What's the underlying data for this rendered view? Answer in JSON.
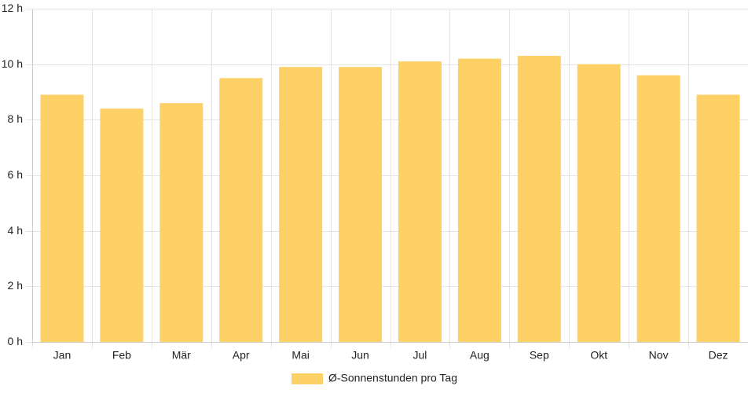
{
  "chart_data": {
    "type": "bar",
    "categories": [
      "Jan",
      "Feb",
      "Mär",
      "Apr",
      "Mai",
      "Jun",
      "Jul",
      "Aug",
      "Sep",
      "Okt",
      "Nov",
      "Dez"
    ],
    "series": [
      {
        "name": "Ø-Sonnenstunden pro Tag",
        "values": [
          8.9,
          8.4,
          8.6,
          9.5,
          9.9,
          9.9,
          10.1,
          10.2,
          10.3,
          10.0,
          9.6,
          8.9
        ]
      }
    ],
    "ylim": [
      0,
      12
    ],
    "yticks": [
      0,
      2,
      4,
      6,
      8,
      10,
      12
    ],
    "ytick_unit": "h",
    "grid": true,
    "legend_position": "bottom",
    "colors": {
      "bar": "#fdd166",
      "grid": "#e5e5e5",
      "axis": "#cccccc",
      "text": "#222222"
    }
  }
}
